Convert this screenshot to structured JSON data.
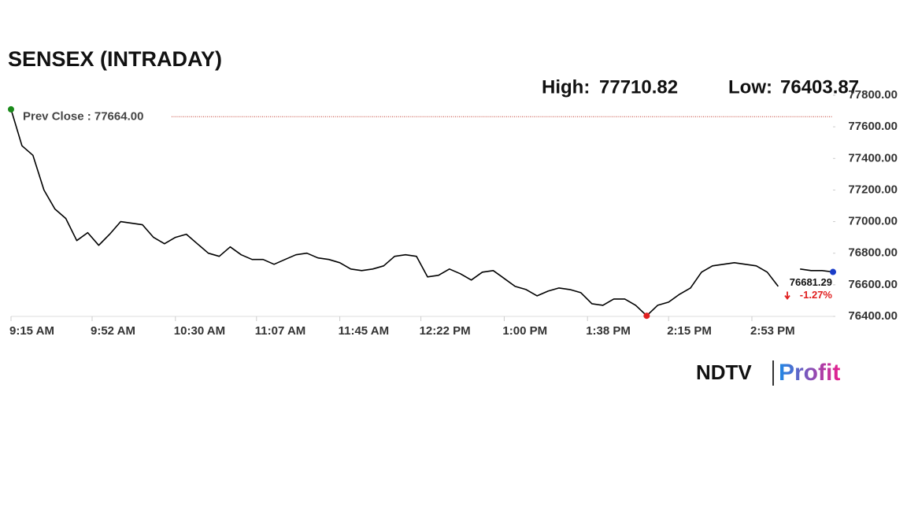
{
  "chart_data": {
    "type": "line",
    "title": "SENSEX (INTRADAY)",
    "high": {
      "label": "High:",
      "value": 77710.82
    },
    "low": {
      "label": "Low:",
      "value": 76403.87
    },
    "prev_close": {
      "value": 77664,
      "label": "Prev Close : 77664.00"
    },
    "last": {
      "value": 76681.29,
      "change_label": "-1.27%"
    },
    "x": [
      "09:15",
      "09:20",
      "09:25",
      "09:30",
      "09:35",
      "09:40",
      "09:45",
      "09:50",
      "09:55",
      "10:00",
      "10:05",
      "10:10",
      "10:15",
      "10:20",
      "10:25",
      "10:30",
      "10:35",
      "10:40",
      "10:45",
      "10:50",
      "10:55",
      "11:00",
      "11:05",
      "11:10",
      "11:15",
      "11:20",
      "11:25",
      "11:30",
      "11:35",
      "11:40",
      "11:45",
      "11:50",
      "11:55",
      "12:00",
      "12:05",
      "12:10",
      "12:15",
      "12:20",
      "12:25",
      "12:30",
      "12:35",
      "12:40",
      "12:45",
      "12:50",
      "12:55",
      "13:00",
      "13:05",
      "13:10",
      "13:15",
      "13:20",
      "13:25",
      "13:30",
      "13:35",
      "13:40",
      "13:45",
      "13:50",
      "13:55",
      "14:00",
      "14:05",
      "14:10",
      "14:15",
      "14:20",
      "14:25",
      "14:30",
      "14:35",
      "14:40",
      "14:45",
      "14:50",
      "14:55",
      "15:00",
      "15:05",
      "15:10",
      "15:15",
      "15:20",
      "15:25",
      "15:30"
    ],
    "values": [
      77710.82,
      77480,
      77420,
      77200,
      77080,
      77020,
      76880,
      76930,
      76850,
      76920,
      77000,
      76990,
      76980,
      76900,
      76860,
      76900,
      76920,
      76860,
      76800,
      76780,
      76840,
      76790,
      76760,
      76760,
      76730,
      76760,
      76790,
      76800,
      76770,
      76760,
      76740,
      76700,
      76690,
      76700,
      76720,
      76780,
      76790,
      76780,
      76650,
      76660,
      76700,
      76670,
      76630,
      76680,
      76690,
      76640,
      76590,
      76570,
      76530,
      76560,
      76580,
      76570,
      76550,
      76480,
      76470,
      76510,
      76510,
      76470,
      76403.87,
      76470,
      76490,
      76540,
      76580,
      76680,
      76720,
      76730,
      76740,
      76730,
      76720,
      76680,
      76590,
      null,
      76700,
      76690,
      76690,
      76681.29
    ],
    "color": "#000000",
    "xlim": [
      "09:15",
      "15:30"
    ],
    "xticks": [
      {
        "value": "09:15",
        "label": "9:15 AM"
      },
      {
        "value": "09:52",
        "label": "9:52 AM"
      },
      {
        "value": "10:30",
        "label": "10:30 AM"
      },
      {
        "value": "11:07",
        "label": "11:07 AM"
      },
      {
        "value": "11:45",
        "label": "11:45 AM"
      },
      {
        "value": "12:22",
        "label": "12:22 PM"
      },
      {
        "value": "13:00",
        "label": "1:00 PM"
      },
      {
        "value": "13:38",
        "label": "1:38 PM"
      },
      {
        "value": "14:15",
        "label": "2:15 PM"
      },
      {
        "value": "14:53",
        "label": "2:53 PM"
      }
    ],
    "ylim": [
      76400,
      77800
    ],
    "yticks": [
      {
        "value": 76400,
        "label": "76400.00"
      },
      {
        "value": 76600,
        "label": "76600.00"
      },
      {
        "value": 76800,
        "label": "76800.00"
      },
      {
        "value": 77000,
        "label": "77000.00"
      },
      {
        "value": 77200,
        "label": "77200.00"
      },
      {
        "value": 77400,
        "label": "77400.00"
      },
      {
        "value": 77600,
        "label": "77600.00"
      },
      {
        "value": 77800,
        "label": "77800.00"
      }
    ],
    "logo": [
      "NDTV",
      "Profit"
    ]
  }
}
